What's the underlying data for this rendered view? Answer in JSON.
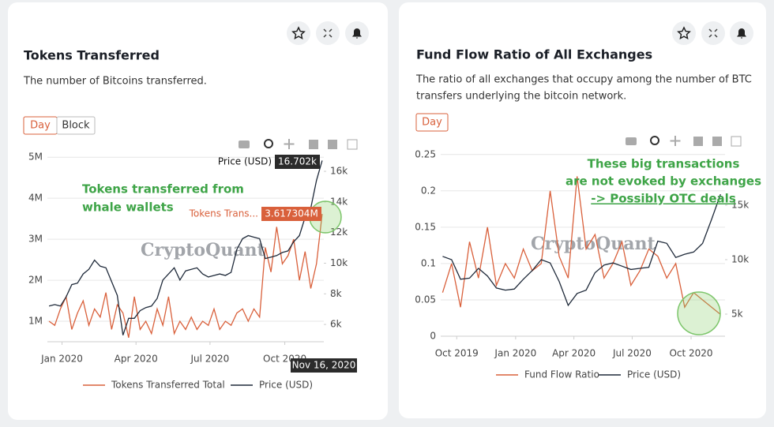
{
  "chart_data": [
    {
      "type": "line",
      "title": "Tokens Transferred",
      "subtitle": [
        "The number of Bitcoins transferred."
      ],
      "buttons": [
        "Day",
        "Block"
      ],
      "watermark": "CryptoQuant",
      "annotations": [
        "Tokens transferred from",
        "whale wallets"
      ],
      "tooltips": [
        {
          "name": "Price (USD)",
          "text": "16.702k"
        },
        {
          "name": "Tokens Trans...",
          "text": "3.617304M"
        },
        {
          "name": "Nov 16, 2020"
        }
      ],
      "x": [
        "2019-12-16",
        "2019-12-23",
        "2019-12-30",
        "2020-01-06",
        "2020-01-13",
        "2020-01-20",
        "2020-01-27",
        "2020-02-03",
        "2020-02-10",
        "2020-02-17",
        "2020-02-24",
        "2020-03-02",
        "2020-03-09",
        "2020-03-16",
        "2020-03-23",
        "2020-03-30",
        "2020-04-06",
        "2020-04-13",
        "2020-04-20",
        "2020-04-27",
        "2020-05-04",
        "2020-05-11",
        "2020-05-18",
        "2020-05-25",
        "2020-06-01",
        "2020-06-08",
        "2020-06-15",
        "2020-06-22",
        "2020-06-29",
        "2020-07-06",
        "2020-07-13",
        "2020-07-20",
        "2020-07-27",
        "2020-08-03",
        "2020-08-10",
        "2020-08-17",
        "2020-08-24",
        "2020-08-31",
        "2020-09-07",
        "2020-09-14",
        "2020-09-21",
        "2020-09-28",
        "2020-10-05",
        "2020-10-12",
        "2020-10-19",
        "2020-10-26",
        "2020-11-02",
        "2020-11-09",
        "2020-11-16"
      ],
      "xlim": [
        "2019-12-14",
        "2020-11-18"
      ],
      "xticks": [
        {
          "value": "2020-01-01",
          "label": "Jan 2020"
        },
        {
          "value": "2020-04-01",
          "label": "Apr 2020"
        },
        {
          "value": "2020-07-01",
          "label": "Jul 2020"
        },
        {
          "value": "2020-10-01",
          "label": "Oct 2020"
        }
      ],
      "ylim": [
        500000,
        5120000
      ],
      "yticks": [
        {
          "value": 1000000,
          "label": "1M"
        },
        {
          "value": 2000000,
          "label": "2M"
        },
        {
          "value": 3000000,
          "label": "3M"
        },
        {
          "value": 4000000,
          "label": "4M"
        },
        {
          "value": 5000000,
          "label": "5M"
        }
      ],
      "y2lim": [
        4870,
        17240
      ],
      "y2ticks": [
        {
          "value": 6000,
          "label": "6k"
        },
        {
          "value": 8000,
          "label": "8k"
        },
        {
          "value": 10000,
          "label": "10k"
        },
        {
          "value": 12000,
          "label": "12k"
        },
        {
          "value": 14000,
          "label": "14k"
        },
        {
          "value": 16000,
          "label": "16k"
        }
      ],
      "grid": true,
      "series": [
        {
          "name": "Tokens Transferred Total",
          "color": "#d9603b",
          "values": [
            1000000,
            900000,
            1300000,
            1600000,
            800000,
            1200000,
            1500000,
            900000,
            1300000,
            1100000,
            1700000,
            800000,
            1400000,
            1200000,
            600000,
            1600000,
            800000,
            1000000,
            700000,
            1300000,
            900000,
            1600000,
            700000,
            1000000,
            800000,
            1100000,
            800000,
            1000000,
            900000,
            1300000,
            800000,
            1000000,
            900000,
            1200000,
            1300000,
            1000000,
            1300000,
            1100000,
            2800000,
            2200000,
            3300000,
            2400000,
            2600000,
            3000000,
            2000000,
            2700000,
            1800000,
            2400000,
            3617304
          ]
        },
        {
          "name": "Price (USD)",
          "color": "#1f2a3a",
          "axis": "y2",
          "values": [
            7200,
            7300,
            7200,
            7800,
            8600,
            8700,
            9300,
            9600,
            10200,
            9800,
            9700,
            8800,
            7900,
            5300,
            6400,
            6400,
            6900,
            7100,
            7200,
            7700,
            8900,
            9300,
            9700,
            8900,
            9500,
            9600,
            9700,
            9300,
            9100,
            9200,
            9300,
            9200,
            9400,
            10900,
            11600,
            11800,
            11700,
            11600,
            10300,
            10400,
            10500,
            10700,
            10800,
            11400,
            11800,
            13000,
            13600,
            15400,
            16702
          ]
        }
      ]
    },
    {
      "type": "line",
      "title": "Fund Flow Ratio of All Exchanges",
      "subtitle": [
        "The ratio of all exchanges that occupy among the number of BTC",
        "transfers underlying the bitcoin network."
      ],
      "buttons": [
        "Day"
      ],
      "watermark": "CryptoQuant",
      "annotations": [
        "These big transactions",
        "are not evoked by exchanges",
        "-> Possibly OTC deals"
      ],
      "tooltips": [],
      "x": [
        "2019-09-09",
        "2019-09-23",
        "2019-10-07",
        "2019-10-21",
        "2019-11-04",
        "2019-11-18",
        "2019-12-02",
        "2019-12-16",
        "2019-12-30",
        "2020-01-13",
        "2020-01-27",
        "2020-02-10",
        "2020-02-24",
        "2020-03-09",
        "2020-03-23",
        "2020-04-06",
        "2020-04-20",
        "2020-05-04",
        "2020-05-18",
        "2020-06-01",
        "2020-06-15",
        "2020-06-29",
        "2020-07-13",
        "2020-07-27",
        "2020-08-10",
        "2020-08-24",
        "2020-09-07",
        "2020-09-21",
        "2020-10-05",
        "2020-10-19",
        "2020-11-02",
        "2020-11-16"
      ],
      "xlim": [
        "2019-09-06",
        "2020-11-23"
      ],
      "xticks": [
        {
          "value": "2019-10-01",
          "label": "Oct 2019"
        },
        {
          "value": "2020-01-01",
          "label": "Jan 2020"
        },
        {
          "value": "2020-04-01",
          "label": "Apr 2020"
        },
        {
          "value": "2020-07-01",
          "label": "Jul 2020"
        },
        {
          "value": "2020-10-01",
          "label": "Oct 2020"
        }
      ],
      "ylim": [
        0,
        0.253
      ],
      "yticks": [
        0,
        0.05,
        0.1,
        0.15,
        0.2,
        0.25
      ],
      "y2lim": [
        2970,
        19850
      ],
      "y2ticks": [
        {
          "value": 5000,
          "label": "5k"
        },
        {
          "value": 10000,
          "label": "10k"
        },
        {
          "value": 15000,
          "label": "15k"
        }
      ],
      "grid": true,
      "series": [
        {
          "name": "Fund Flow Ratio",
          "color": "#d9603b",
          "values": [
            0.06,
            0.1,
            0.04,
            0.13,
            0.08,
            0.15,
            0.07,
            0.1,
            0.08,
            0.12,
            0.09,
            0.1,
            0.2,
            0.11,
            0.08,
            0.22,
            0.12,
            0.14,
            0.08,
            0.1,
            0.13,
            0.07,
            0.09,
            0.12,
            0.11,
            0.08,
            0.1,
            0.04,
            0.06,
            0.05,
            0.04,
            0.03
          ]
        },
        {
          "name": "Price (USD)",
          "color": "#1f2a3a",
          "axis": "y2",
          "values": [
            10300,
            10000,
            8200,
            8300,
            9200,
            8500,
            7400,
            7200,
            7300,
            8200,
            9000,
            10000,
            9700,
            8000,
            5800,
            6900,
            7200,
            8800,
            9500,
            9700,
            9400,
            9100,
            9200,
            9300,
            11700,
            11500,
            10200,
            10500,
            10700,
            11500,
            13700,
            16000
          ]
        }
      ]
    }
  ]
}
